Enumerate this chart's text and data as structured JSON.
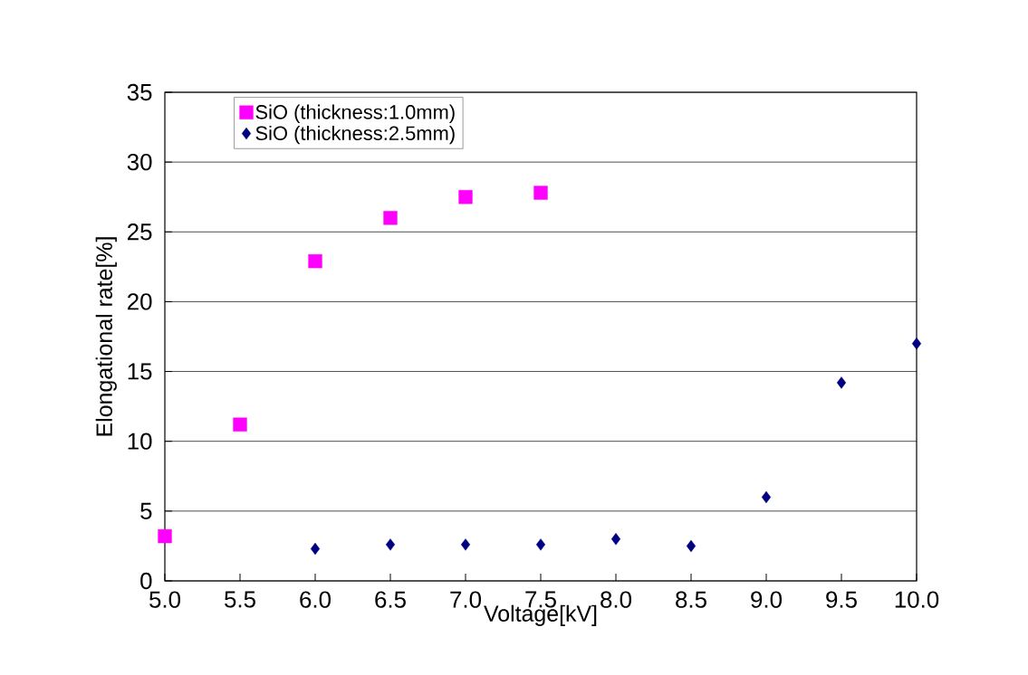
{
  "chart_data": {
    "type": "scatter",
    "xlabel": "Voltage[kV]",
    "ylabel": "Elongational rate[%]",
    "xlim": [
      5.0,
      10.0
    ],
    "ylim": [
      0,
      35
    ],
    "xticks": [
      {
        "value": 5,
        "label": "5.0"
      },
      {
        "value": 5.5,
        "label": "5.5"
      },
      {
        "value": 6,
        "label": "6.0"
      },
      {
        "value": 6.5,
        "label": "6.5"
      },
      {
        "value": 7,
        "label": "7.0"
      },
      {
        "value": 7.5,
        "label": "7.5"
      },
      {
        "value": 8,
        "label": "8.0"
      },
      {
        "value": 8.5,
        "label": "8.5"
      },
      {
        "value": 9,
        "label": "9.0"
      },
      {
        "value": 9.5,
        "label": "9.5"
      },
      {
        "value": 10,
        "label": "10.0"
      }
    ],
    "yticks": [
      0,
      5,
      10,
      15,
      20,
      25,
      30,
      35
    ],
    "grid": "y",
    "legend": "top left",
    "series": [
      {
        "name": "SiO  (thickness:1.0mm)",
        "color": "#ff00ff",
        "marker": "square",
        "x": [
          5.0,
          5.5,
          6.0,
          6.5,
          7.0,
          7.5
        ],
        "values": [
          3.2,
          11.2,
          22.9,
          26.0,
          27.5,
          27.8
        ]
      },
      {
        "name": "SiO  (thickness:2.5mm)",
        "color": "#000080",
        "marker": "diamond",
        "x": [
          6.0,
          6.5,
          7.0,
          7.5,
          8.0,
          8.5,
          9.0,
          9.5,
          10.0
        ],
        "values": [
          2.3,
          2.6,
          2.6,
          2.6,
          3.0,
          2.5,
          6.0,
          14.2,
          17.0
        ]
      }
    ]
  }
}
